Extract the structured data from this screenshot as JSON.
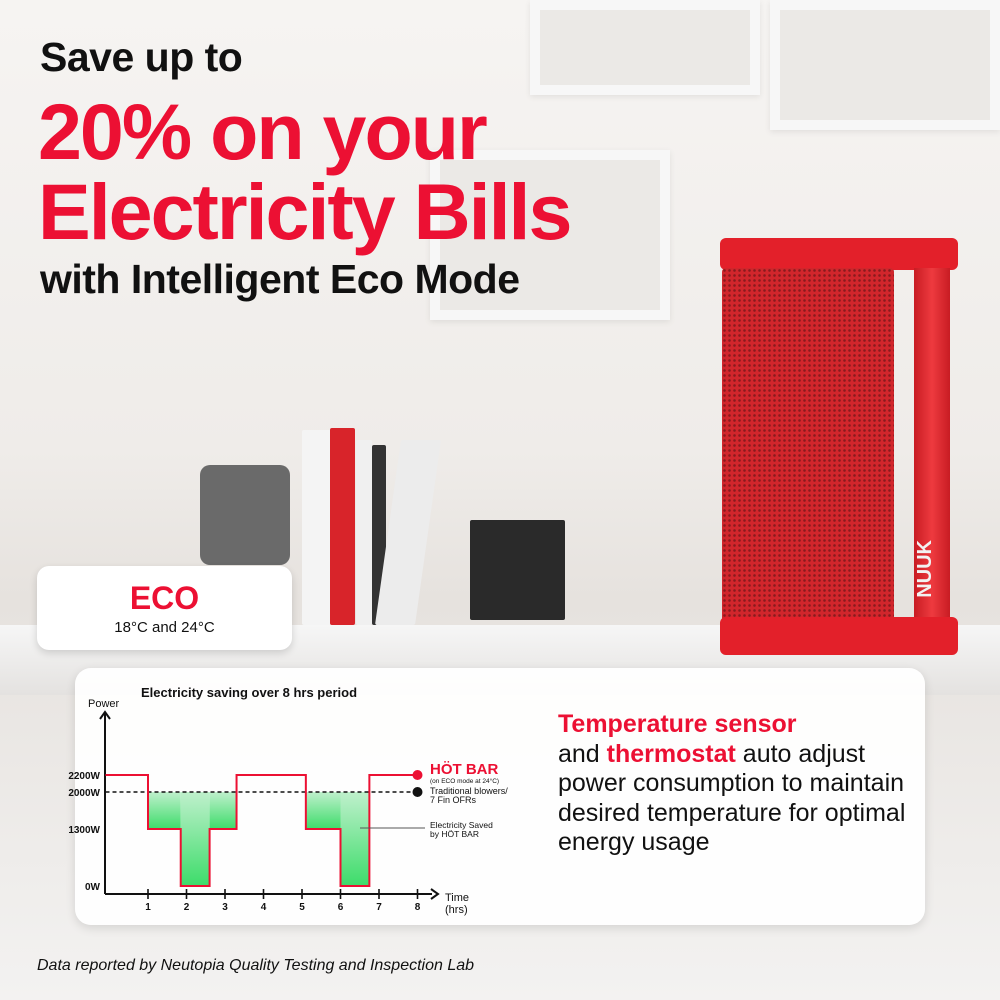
{
  "headline": {
    "line1": "Save up to",
    "line2": "20% on your",
    "line3": "Electricity Bills",
    "line4": "with Intelligent Eco Mode"
  },
  "product": {
    "brand": "NUUK",
    "color": "#e3202a"
  },
  "eco_badge": {
    "title": "ECO",
    "range": "18°C and 24°C"
  },
  "description": {
    "part1": "Temperature sensor",
    "part2": " and ",
    "part3": "thermostat",
    "part4": " auto adjust power consumption to maintain desired temperature for optimal energy usage"
  },
  "footer": "Data reported by Neutopia Quality Testing and Inspection Lab",
  "colors": {
    "accent": "#ec1033",
    "saved_fill": "#3ddc6a"
  },
  "chart_data": {
    "type": "line",
    "title": "Electricity saving over 8 hrs period",
    "ylabel": "Power",
    "xlabel": "Time (hrs)",
    "xlabel_line1": "Time",
    "xlabel_line2": "(hrs)",
    "x_ticks": [
      "1",
      "2",
      "3",
      "4",
      "5",
      "6",
      "7",
      "8"
    ],
    "y_ticks": [
      {
        "label": "0W",
        "value": 0
      },
      {
        "label": "1300W",
        "value": 1300
      },
      {
        "label": "2000W",
        "value": 2000
      },
      {
        "label": "2200W",
        "value": 2200
      }
    ],
    "xlim": [
      0,
      8
    ],
    "ylim": [
      0,
      2200
    ],
    "series": [
      {
        "name": "HÖT BAR",
        "note": "(on ECO mode at 24°C)",
        "style": "step",
        "color": "#ec1033",
        "points": [
          [
            0,
            2200
          ],
          [
            1,
            1300
          ],
          [
            1.85,
            0
          ],
          [
            2.6,
            1300
          ],
          [
            3.3,
            2200
          ],
          [
            5.1,
            1300
          ],
          [
            6,
            0
          ],
          [
            6.75,
            2200
          ],
          [
            8,
            2200
          ]
        ]
      },
      {
        "name": "Traditional blowers/",
        "name_line2": "7 Fin OFRs",
        "style": "dashed",
        "color": "#111111",
        "points": [
          [
            0,
            2000
          ],
          [
            8,
            2000
          ]
        ]
      }
    ],
    "annotation": {
      "line1": "Electricity Saved",
      "line2": "by HÖT BAR"
    }
  }
}
